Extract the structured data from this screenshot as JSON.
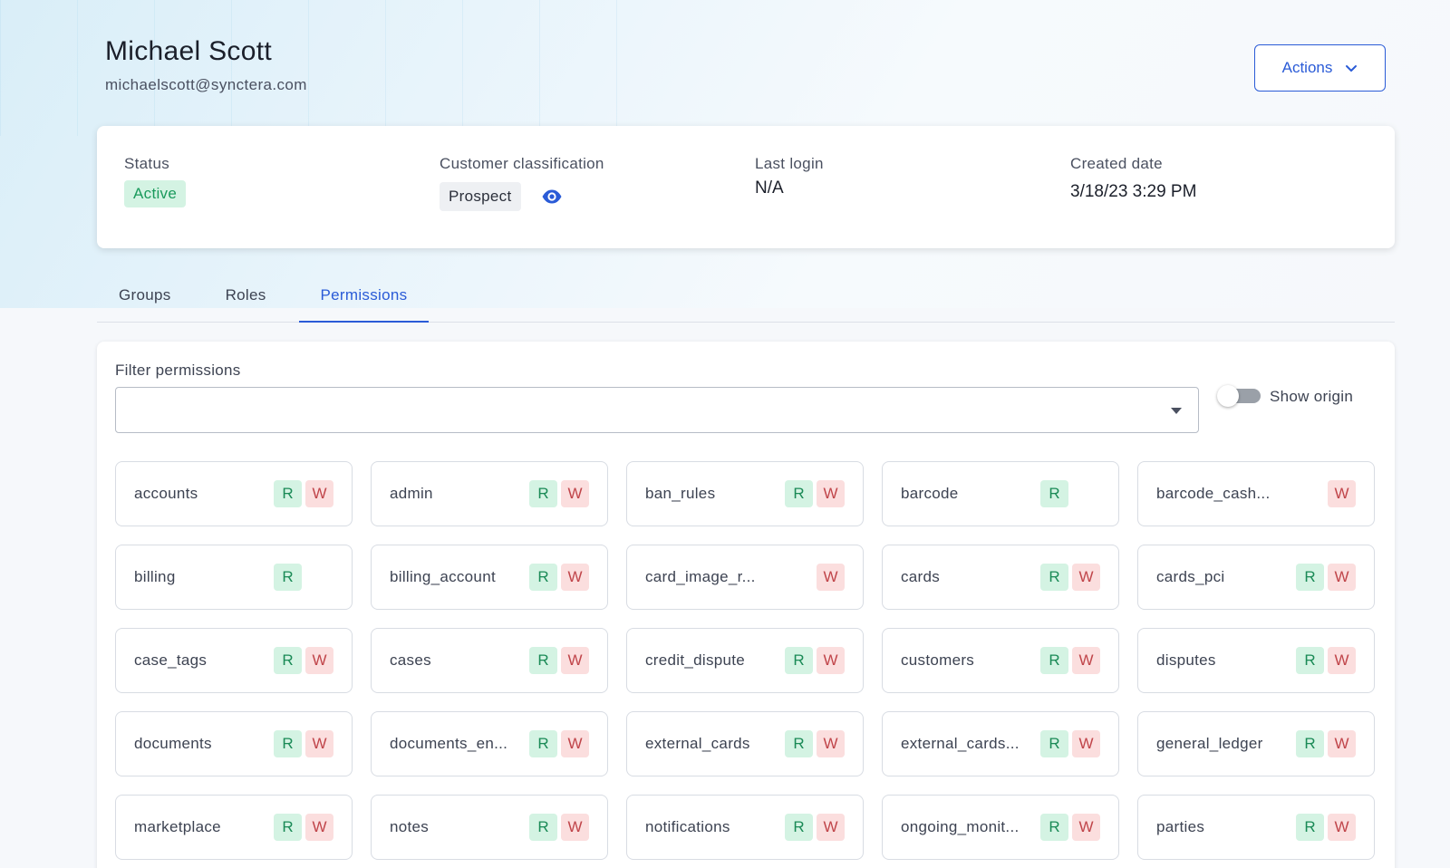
{
  "user": {
    "name": "Michael Scott",
    "email": "michaelscott@synctera.com"
  },
  "actions": {
    "label": "Actions",
    "icon": "chevron-down-icon"
  },
  "summary": {
    "status": {
      "label": "Status",
      "value": "Active"
    },
    "classification": {
      "label": "Customer classification",
      "value": "Prospect",
      "icon": "eye-icon"
    },
    "last_login": {
      "label": "Last login",
      "value": "N/A"
    },
    "created": {
      "label": "Created date",
      "value": "3/18/23 3:29 PM"
    }
  },
  "tabs": [
    {
      "label": "Groups",
      "active": false
    },
    {
      "label": "Roles",
      "active": false
    },
    {
      "label": "Permissions",
      "active": true
    }
  ],
  "filter": {
    "label": "Filter permissions",
    "value": "",
    "placeholder": ""
  },
  "show_origin": {
    "label": "Show origin",
    "enabled": false
  },
  "colors": {
    "accent": "#2a5bd7",
    "read_bg": "#d4f3e3",
    "read_fg": "#1a8a56",
    "write_bg": "#fbdede",
    "write_fg": "#c0454a"
  },
  "badge_labels": {
    "read": "R",
    "write": "W"
  },
  "permissions": [
    {
      "name": "accounts",
      "read": true,
      "write": true
    },
    {
      "name": "admin",
      "read": true,
      "write": true
    },
    {
      "name": "ban_rules",
      "read": true,
      "write": true
    },
    {
      "name": "barcode",
      "read": true,
      "write": false
    },
    {
      "name": "barcode_cash...",
      "read": false,
      "write": true
    },
    {
      "name": "billing",
      "read": true,
      "write": false
    },
    {
      "name": "billing_account",
      "read": true,
      "write": true
    },
    {
      "name": "card_image_r...",
      "read": false,
      "write": true
    },
    {
      "name": "cards",
      "read": true,
      "write": true
    },
    {
      "name": "cards_pci",
      "read": true,
      "write": true
    },
    {
      "name": "case_tags",
      "read": true,
      "write": true
    },
    {
      "name": "cases",
      "read": true,
      "write": true
    },
    {
      "name": "credit_dispute",
      "read": true,
      "write": true
    },
    {
      "name": "customers",
      "read": true,
      "write": true
    },
    {
      "name": "disputes",
      "read": true,
      "write": true
    },
    {
      "name": "documents",
      "read": true,
      "write": true
    },
    {
      "name": "documents_en...",
      "read": true,
      "write": true
    },
    {
      "name": "external_cards",
      "read": true,
      "write": true
    },
    {
      "name": "external_cards...",
      "read": true,
      "write": true
    },
    {
      "name": "general_ledger",
      "read": true,
      "write": true
    },
    {
      "name": "marketplace",
      "read": true,
      "write": true
    },
    {
      "name": "notes",
      "read": true,
      "write": true
    },
    {
      "name": "notifications",
      "read": true,
      "write": true
    },
    {
      "name": "ongoing_monit...",
      "read": true,
      "write": true
    },
    {
      "name": "parties",
      "read": true,
      "write": true
    }
  ]
}
